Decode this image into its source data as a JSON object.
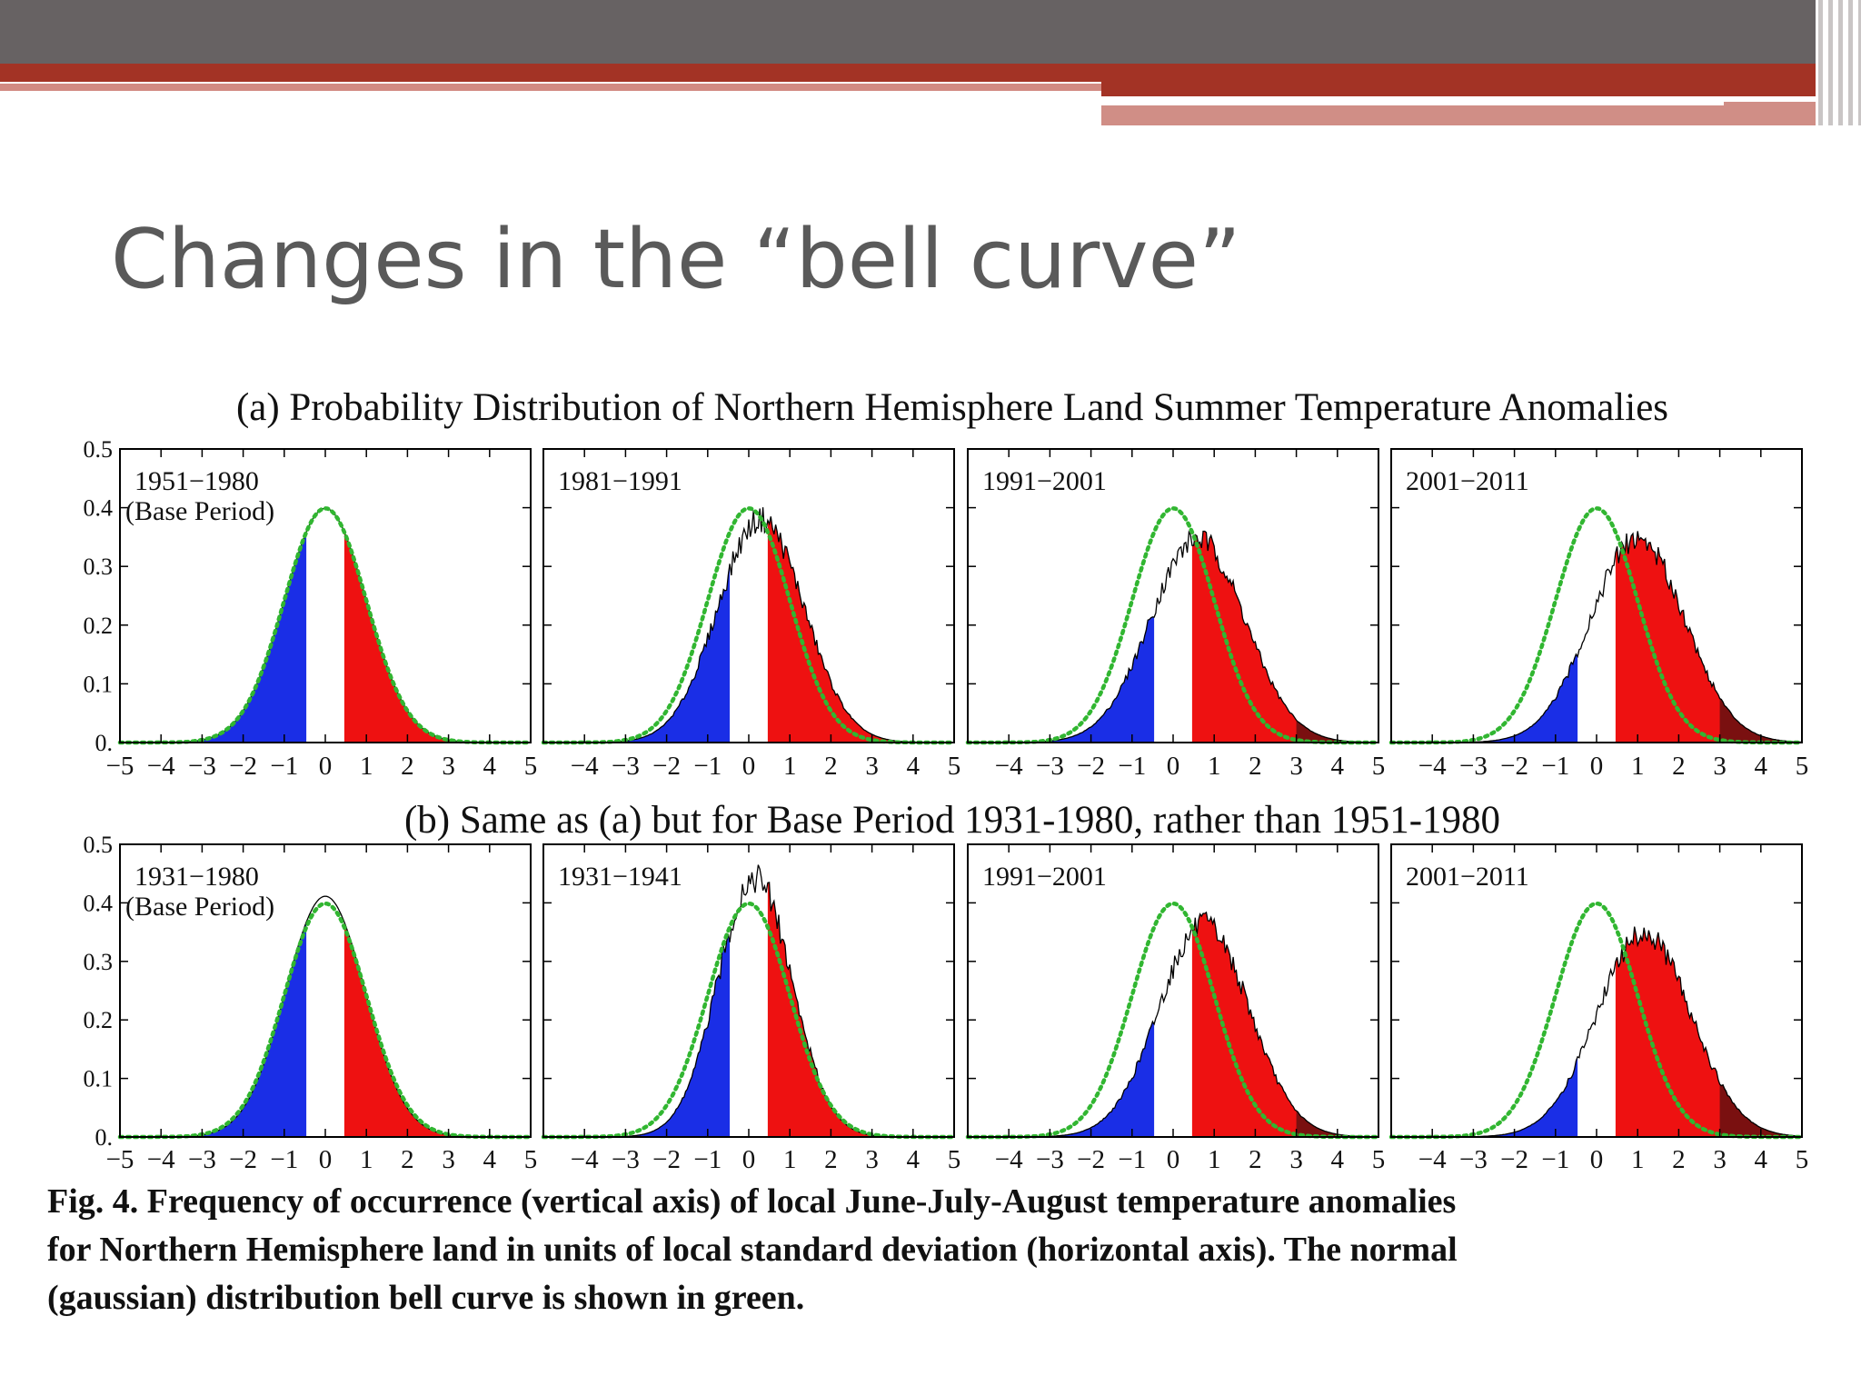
{
  "slide": {
    "title": "Changes in the “bell curve”"
  },
  "chart_data": [
    {
      "type": "area",
      "title": "(a) Probability Distribution of Northern Hemisphere Land Summer Temperature Anomalies",
      "ylim": [
        0,
        0.5
      ],
      "yticks": [
        "0.5",
        "0.4",
        "0.3",
        "0.2",
        "0.1",
        "0."
      ],
      "panels": [
        {
          "label": "1951−1980",
          "sublabel": "(Base Period)",
          "xlim": [
            -5,
            5
          ],
          "xticks": [
            "−5",
            "−4",
            "−3",
            "−2",
            "−1",
            "0",
            "1",
            "2",
            "3",
            "4",
            "5"
          ],
          "series": [
            {
              "mean": 0,
              "sd": 1
            }
          ]
        },
        {
          "label": "1981−1991",
          "sublabel": "",
          "xlim": [
            -5,
            5
          ],
          "xticks": [
            "−4",
            "−3",
            "−2",
            "−1",
            "0",
            "1",
            "2",
            "3",
            "4",
            "5"
          ],
          "series": [
            {
              "mean": 0.3,
              "sd": 1.05
            }
          ]
        },
        {
          "label": "1991−2001",
          "sublabel": "",
          "xlim": [
            -5,
            5
          ],
          "xticks": [
            "−4",
            "−3",
            "−2",
            "−1",
            "0",
            "1",
            "2",
            "3",
            "4",
            "5"
          ],
          "series": [
            {
              "mean": 0.6,
              "sd": 1.15
            }
          ]
        },
        {
          "label": "2001−2011",
          "sublabel": "",
          "xlim": [
            -5,
            5
          ],
          "xticks": [
            "−4",
            "−3",
            "−2",
            "−1",
            "0",
            "1",
            "2",
            "3",
            "4",
            "5"
          ],
          "series": [
            {
              "mean": 1.0,
              "sd": 1.15
            }
          ]
        }
      ]
    },
    {
      "type": "area",
      "title": "(b) Same as (a) but for Base Period 1931-1980, rather than 1951-1980",
      "ylim": [
        0,
        0.5
      ],
      "yticks": [
        "0.5",
        "0.4",
        "0.3",
        "0.2",
        "0.1",
        "0."
      ],
      "panels": [
        {
          "label": "1931−1980",
          "sublabel": "(Base Period)",
          "xlim": [
            -5,
            5
          ],
          "xticks": [
            "−5",
            "−4",
            "−3",
            "−2",
            "−1",
            "0",
            "1",
            "2",
            "3",
            "4",
            "5"
          ],
          "series": [
            {
              "mean": 0,
              "sd": 0.97
            }
          ]
        },
        {
          "label": "1931−1941",
          "sublabel": "",
          "xlim": [
            -5,
            5
          ],
          "xticks": [
            "−4",
            "−3",
            "−2",
            "−1",
            "0",
            "1",
            "2",
            "3",
            "4",
            "5"
          ],
          "series": [
            {
              "mean": 0.15,
              "sd": 0.9
            }
          ]
        },
        {
          "label": "1991−2001",
          "sublabel": "",
          "xlim": [
            -5,
            5
          ],
          "xticks": [
            "−4",
            "−3",
            "−2",
            "−1",
            "0",
            "1",
            "2",
            "3",
            "4",
            "5"
          ],
          "series": [
            {
              "mean": 0.75,
              "sd": 1.1
            }
          ]
        },
        {
          "label": "2001−2011",
          "sublabel": "",
          "xlim": [
            -5,
            5
          ],
          "xticks": [
            "−4",
            "−3",
            "−2",
            "−1",
            "0",
            "1",
            "2",
            "3",
            "4",
            "5"
          ],
          "series": [
            {
              "mean": 1.15,
              "sd": 1.15
            }
          ]
        }
      ]
    }
  ],
  "caption": {
    "line1": "Fig. 4.  Frequency of occurrence (vertical axis) of local June-July-August temperature anomalies",
    "line2": "for Northern Hemisphere land in units of local standard deviation (horizontal axis).   The normal",
    "line3": "(gaussian) distribution bell curve is shown in green."
  },
  "colors": {
    "cold": "#1a2ee6",
    "hot": "#ee1111",
    "extreme": "#7a1010",
    "gaussian": "#31b631",
    "text": "#111111",
    "title": "#5a5a5a",
    "header_gray": "#676263",
    "header_red": "#a33325"
  }
}
